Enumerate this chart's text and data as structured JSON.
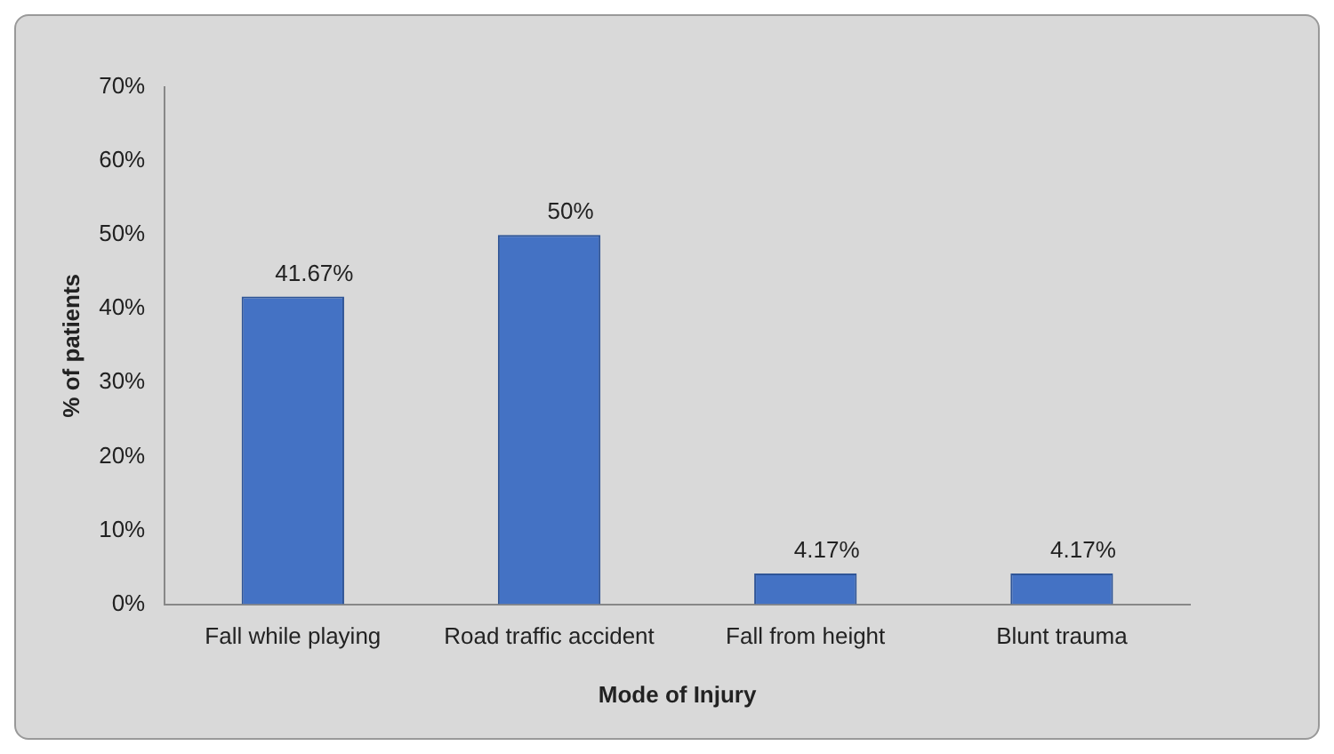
{
  "chart_data": {
    "type": "bar",
    "xlabel": "Mode of Injury",
    "ylabel": "% of patients",
    "categories": [
      "Fall while playing",
      "Road traffic accident",
      "Fall from height",
      "Blunt trauma"
    ],
    "values": [
      41.67,
      50,
      4.17,
      4.17
    ],
    "value_labels": [
      "41.67%",
      "50%",
      "4.17%",
      "4.17%"
    ],
    "color": "#4472c4",
    "ylim": [
      0,
      70
    ],
    "yticks": [
      {
        "value": 0,
        "label": "0%"
      },
      {
        "value": 10,
        "label": "10%"
      },
      {
        "value": 20,
        "label": "20%"
      },
      {
        "value": 30,
        "label": "30%"
      },
      {
        "value": 40,
        "label": "40%"
      },
      {
        "value": 50,
        "label": "50%"
      },
      {
        "value": 60,
        "label": "60%"
      },
      {
        "value": 70,
        "label": "70%"
      }
    ],
    "grid": false,
    "legend": false
  }
}
